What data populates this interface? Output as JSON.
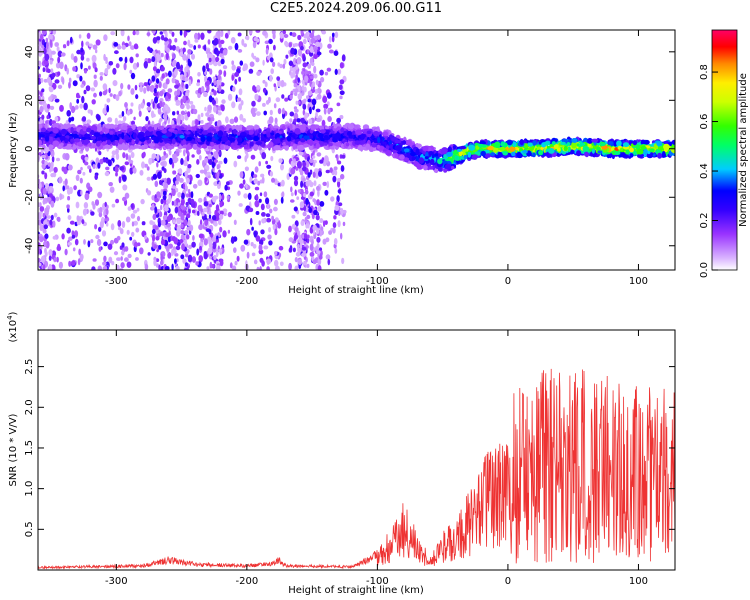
{
  "title": "C2E5.2024.209.06.00.G11",
  "chart_data": [
    {
      "type": "heatmap",
      "name": "spectrogram",
      "xlabel": "Height of straight line (km)",
      "ylabel": "Frequency (Hz)",
      "xlim": [
        -360,
        128
      ],
      "ylim": [
        -50,
        49
      ],
      "xticks": [
        -300,
        -200,
        -100,
        0,
        100
      ],
      "yticks": [
        -40,
        -20,
        0,
        20,
        40
      ],
      "colorbar": {
        "label": "Normalized spectral amplitude",
        "range": [
          0,
          0.97
        ],
        "ticks": [
          0.0,
          0.2,
          0.4,
          0.6,
          0.8
        ],
        "tick_labels": [
          "0.0",
          "0.2",
          "0.4",
          "0.6",
          "0.8"
        ]
      },
      "ridge": {
        "x": [
          -350,
          -300,
          -250,
          -200,
          -150,
          -120,
          -100,
          -80,
          -70,
          -60,
          -50,
          -45,
          -40,
          -30,
          -20,
          0,
          20,
          50,
          80,
          100,
          128
        ],
        "freq": [
          5,
          5,
          5,
          4.5,
          5,
          5,
          4,
          0,
          -3,
          -4,
          -5,
          -4,
          -3,
          -1,
          0,
          0,
          0,
          1,
          0,
          0,
          0
        ],
        "peak_amplitude": [
          0.35,
          0.35,
          0.4,
          0.4,
          0.38,
          0.35,
          0.38,
          0.45,
          0.45,
          0.5,
          0.55,
          0.7,
          0.85,
          0.9,
          0.9,
          0.95,
          0.95,
          0.95,
          0.95,
          0.95,
          0.95
        ]
      },
      "noise_x_range": [
        -360,
        -125
      ]
    },
    {
      "type": "line",
      "name": "snr",
      "xlabel": "Height of straight line (km)",
      "ylabel": "SNR (10 * V/V)",
      "y_multiplier": "(x10",
      "y_multiplier_exp": "4",
      "y_multiplier_close": ")",
      "xlim": [
        -360,
        128
      ],
      "ylim": [
        0,
        2.95
      ],
      "xticks": [
        -300,
        -200,
        -100,
        0,
        100
      ],
      "yticks": [
        0.5,
        1.0,
        1.5,
        2.0,
        2.5
      ],
      "ytick_labels": [
        "0.5",
        "1.0",
        "1.5",
        "2.0",
        "2.5"
      ],
      "color": "#ee3333",
      "envelope": {
        "x": [
          -360,
          -280,
          -260,
          -240,
          -200,
          -180,
          -175,
          -170,
          -120,
          -110,
          -100,
          -90,
          -80,
          -70,
          -60,
          -50,
          -40,
          -30,
          -20,
          -10,
          0,
          10,
          30,
          60,
          100,
          128
        ],
        "y": [
          0.03,
          0.05,
          0.12,
          0.07,
          0.05,
          0.08,
          0.12,
          0.05,
          0.04,
          0.1,
          0.2,
          0.45,
          0.75,
          0.4,
          0.15,
          0.4,
          0.55,
          0.8,
          1.1,
          1.35,
          1.4,
          1.5,
          1.6,
          1.6,
          1.5,
          1.45
        ]
      }
    }
  ]
}
